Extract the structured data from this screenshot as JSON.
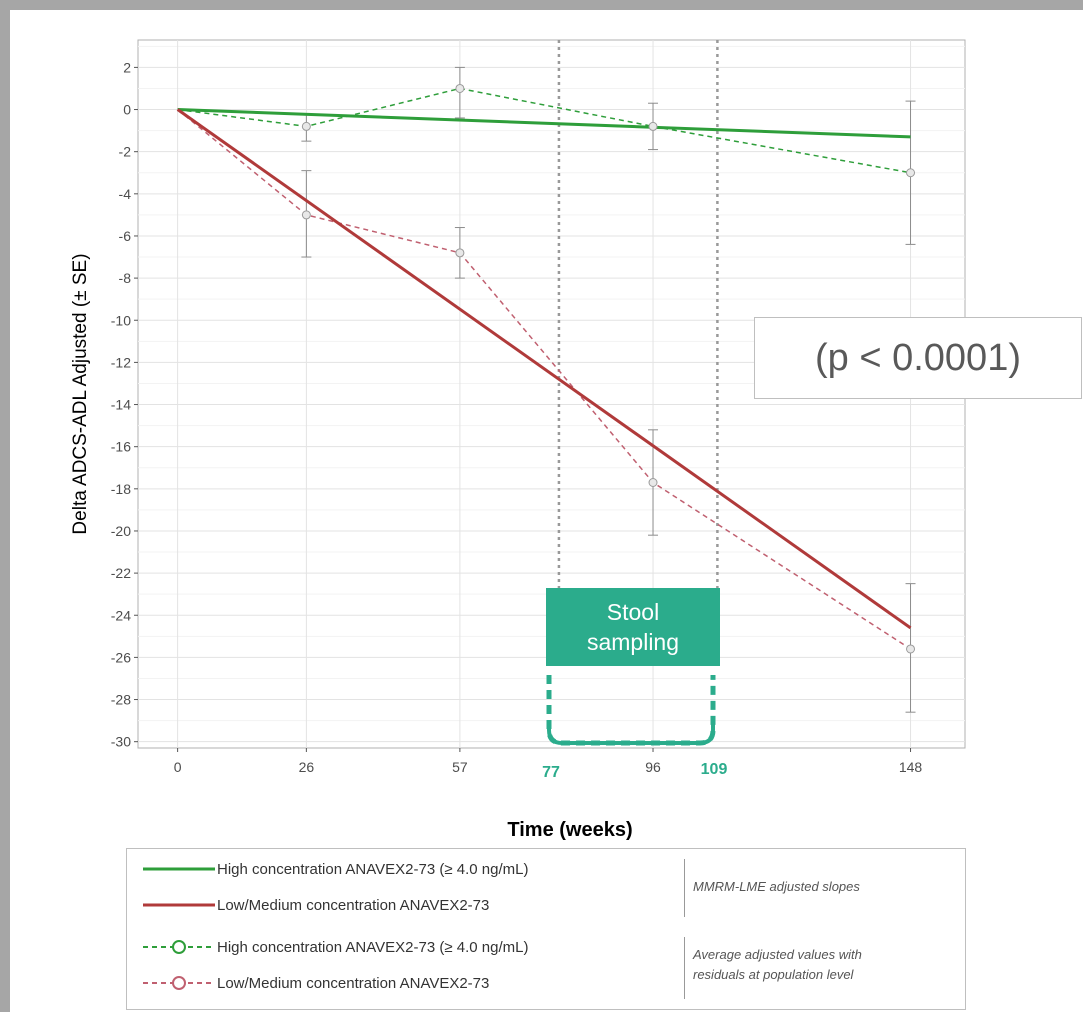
{
  "chart_data": {
    "type": "line",
    "xlabel": "Time (weeks)",
    "ylabel": "Delta ADCS-ADL Adjusted (± SE)",
    "xlim": [
      -8,
      159
    ],
    "ylim": [
      -30.3,
      3.3
    ],
    "x_ticks": [
      0,
      26,
      57,
      96,
      148
    ],
    "y_ticks": [
      2,
      0,
      -2,
      -4,
      -6,
      -8,
      -10,
      -12,
      -14,
      -16,
      -18,
      -20,
      -22,
      -24,
      -26,
      -28,
      -30
    ],
    "grid": true,
    "series": [
      {
        "name": "High concentration ANAVEX2-73 (≥ 4.0 ng/mL)",
        "kind": "slope",
        "color": "#2e9e3a",
        "x": [
          0,
          148
        ],
        "y": [
          0,
          -1.3
        ]
      },
      {
        "name": "Low/Medium concentration ANAVEX2-73",
        "kind": "slope",
        "color": "#b03a3a",
        "x": [
          0,
          148
        ],
        "y": [
          0,
          -24.6
        ]
      },
      {
        "name": "High concentration ANAVEX2-73 (≥ 4.0 ng/mL)",
        "kind": "observed",
        "color": "#2e9e3a",
        "x": [
          0,
          26,
          57,
          96,
          148
        ],
        "y": [
          0,
          -0.8,
          1.0,
          -0.8,
          -3.0
        ],
        "err_low": [
          null,
          -1.5,
          -0.4,
          -1.9,
          -6.4
        ],
        "err_high": [
          null,
          -0.2,
          2.0,
          0.3,
          0.4
        ]
      },
      {
        "name": "Low/Medium concentration ANAVEX2-73",
        "kind": "observed",
        "color": "#c06070",
        "x": [
          0,
          26,
          57,
          96,
          148
        ],
        "y": [
          0,
          -5.0,
          -6.8,
          -17.7,
          -25.6
        ],
        "err_low": [
          null,
          -7.0,
          -8.0,
          -20.2,
          -28.6
        ],
        "err_high": [
          null,
          -2.9,
          -5.6,
          -15.2,
          -22.5
        ]
      }
    ],
    "annotations": {
      "vlines": [
        77,
        109
      ],
      "marker_labels": [
        "77",
        "109"
      ],
      "p_value": "(p < 0.0001)",
      "stool_box": "Stool\nsampling"
    },
    "legend": {
      "items": [
        "High concentration ANAVEX2-73 (≥ 4.0 ng/mL)",
        "Low/Medium concentration ANAVEX2-73",
        "High concentration ANAVEX2-73 (≥ 4.0 ng/mL)",
        "Low/Medium concentration ANAVEX2-73"
      ],
      "note_slopes": "MMRM-LME adjusted slopes",
      "note_average": "Average adjusted values with\nresiduals at population level"
    }
  }
}
